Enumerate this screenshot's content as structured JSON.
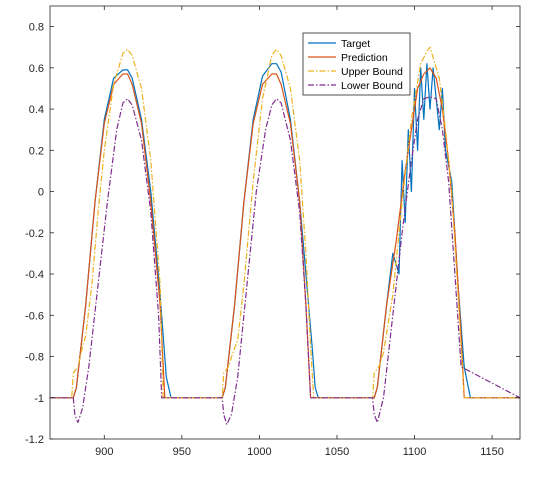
{
  "chart_data": {
    "type": "line",
    "title": "",
    "xlabel": "",
    "ylabel": "",
    "xlim": [
      865,
      1168
    ],
    "ylim": [
      -1.2,
      0.9
    ],
    "xticks": [
      900,
      950,
      1000,
      1050,
      1100,
      1150
    ],
    "yticks": [
      -1.2,
      -1,
      -0.8,
      -0.6,
      -0.4,
      -0.2,
      0,
      0.2,
      0.4,
      0.6,
      0.8
    ],
    "xtick_labels": [
      "900",
      "950",
      "1000",
      "1050",
      "1100",
      "1150"
    ],
    "ytick_labels": [
      "-1.2",
      "-1",
      "-0.8",
      "-0.6",
      "-0.4",
      "-0.2",
      "0",
      "0.2",
      "0.4",
      "0.6",
      "0.8"
    ],
    "grid": false,
    "legend_position": "top-right",
    "series": [
      {
        "name": "Target",
        "color": "#0072BD",
        "dash": "solid",
        "x": [
          865,
          880,
          882,
          888,
          894,
          900,
          906,
          912,
          915,
          918,
          924,
          930,
          936,
          940,
          943,
          976,
          978,
          984,
          990,
          996,
          1002,
          1008,
          1011,
          1014,
          1020,
          1026,
          1030,
          1034,
          1036,
          1038,
          1074,
          1076,
          1082,
          1086,
          1090,
          1092,
          1094,
          1096,
          1098,
          1100,
          1102,
          1104,
          1106,
          1108,
          1110,
          1112,
          1114,
          1116,
          1118,
          1120,
          1124,
          1128,
          1132,
          1136,
          1168
        ],
        "y": [
          -1,
          -1,
          -0.95,
          -0.55,
          -0.05,
          0.35,
          0.55,
          0.59,
          0.59,
          0.55,
          0.35,
          0.0,
          -0.5,
          -0.9,
          -1,
          -1,
          -0.95,
          -0.55,
          -0.05,
          0.35,
          0.56,
          0.62,
          0.62,
          0.58,
          0.35,
          -0.05,
          -0.4,
          -0.75,
          -0.95,
          -1,
          -1,
          -0.95,
          -0.55,
          -0.3,
          -0.4,
          0.15,
          -0.15,
          0.3,
          0.0,
          0.5,
          0.2,
          0.6,
          0.35,
          0.62,
          0.4,
          0.6,
          0.45,
          0.3,
          0.5,
          0.2,
          0.05,
          -0.45,
          -0.85,
          -1,
          -1
        ]
      },
      {
        "name": "Prediction",
        "color": "#D95319",
        "dash": "solid",
        "x": [
          865,
          880,
          882,
          888,
          894,
          900,
          906,
          912,
          915,
          918,
          924,
          930,
          936,
          939,
          976,
          978,
          984,
          990,
          996,
          1002,
          1008,
          1011,
          1014,
          1020,
          1026,
          1030,
          1033,
          1074,
          1076,
          1082,
          1088,
          1094,
          1098,
          1102,
          1106,
          1110,
          1114,
          1118,
          1122,
          1126,
          1130,
          1132,
          1168
        ],
        "y": [
          -1,
          -1,
          -0.95,
          -0.55,
          -0.05,
          0.33,
          0.52,
          0.57,
          0.57,
          0.52,
          0.33,
          -0.05,
          -0.55,
          -1,
          -1,
          -0.95,
          -0.55,
          -0.05,
          0.33,
          0.52,
          0.57,
          0.57,
          0.52,
          0.33,
          -0.05,
          -0.55,
          -1,
          -1,
          -0.95,
          -0.55,
          -0.25,
          0.1,
          0.3,
          0.5,
          0.57,
          0.6,
          0.55,
          0.4,
          0.15,
          -0.2,
          -0.7,
          -1,
          -1
        ]
      },
      {
        "name": "Upper Bound",
        "color": "#EDB120",
        "dash": "dashdot",
        "x": [
          865,
          879,
          880,
          883,
          886,
          888,
          892,
          896,
          900,
          906,
          912,
          915,
          918,
          924,
          930,
          936,
          938,
          976,
          977,
          980,
          983,
          986,
          990,
          996,
          1002,
          1008,
          1011,
          1014,
          1020,
          1026,
          1030,
          1033,
          1035,
          1073,
          1074,
          1077,
          1080,
          1086,
          1092,
          1098,
          1104,
          1108,
          1110,
          1112,
          1116,
          1120,
          1124,
          1128,
          1132,
          1168
        ],
        "y": [
          -1,
          -1,
          -0.88,
          -0.85,
          -0.75,
          -0.7,
          -0.45,
          -0.1,
          0.2,
          0.52,
          0.67,
          0.69,
          0.66,
          0.5,
          0.15,
          -0.45,
          -1,
          -1,
          -0.88,
          -0.85,
          -0.78,
          -0.72,
          -0.45,
          0.05,
          0.45,
          0.66,
          0.69,
          0.66,
          0.5,
          0.15,
          -0.3,
          -0.75,
          -1,
          -1,
          -0.88,
          -0.85,
          -0.78,
          -0.5,
          -0.05,
          0.35,
          0.62,
          0.68,
          0.7,
          0.65,
          0.55,
          0.3,
          0.0,
          -0.5,
          -1,
          -1
        ]
      },
      {
        "name": "Lower Bound",
        "color": "#7E2F8E",
        "dash": "dashdot",
        "x": [
          865,
          880,
          881,
          883,
          886,
          890,
          896,
          902,
          908,
          912,
          915,
          918,
          924,
          930,
          935,
          937,
          976,
          977,
          979,
          982,
          986,
          992,
          998,
          1004,
          1008,
          1011,
          1014,
          1020,
          1026,
          1030,
          1033,
          1073,
          1074,
          1076,
          1080,
          1086,
          1092,
          1098,
          1102,
          1106,
          1110,
          1114,
          1118,
          1122,
          1126,
          1130,
          1168
        ],
        "y": [
          -1,
          -1,
          -1.08,
          -1.12,
          -1.05,
          -0.85,
          -0.45,
          -0.05,
          0.3,
          0.43,
          0.45,
          0.42,
          0.25,
          -0.1,
          -0.6,
          -1,
          -1,
          -1.08,
          -1.13,
          -1.08,
          -0.9,
          -0.45,
          0.0,
          0.3,
          0.42,
          0.45,
          0.43,
          0.25,
          -0.1,
          -0.55,
          -1,
          -1,
          -1.08,
          -1.12,
          -1.0,
          -0.6,
          -0.2,
          0.15,
          0.35,
          0.45,
          0.46,
          0.45,
          0.3,
          0.05,
          -0.4,
          -0.85,
          -1
        ]
      }
    ]
  }
}
